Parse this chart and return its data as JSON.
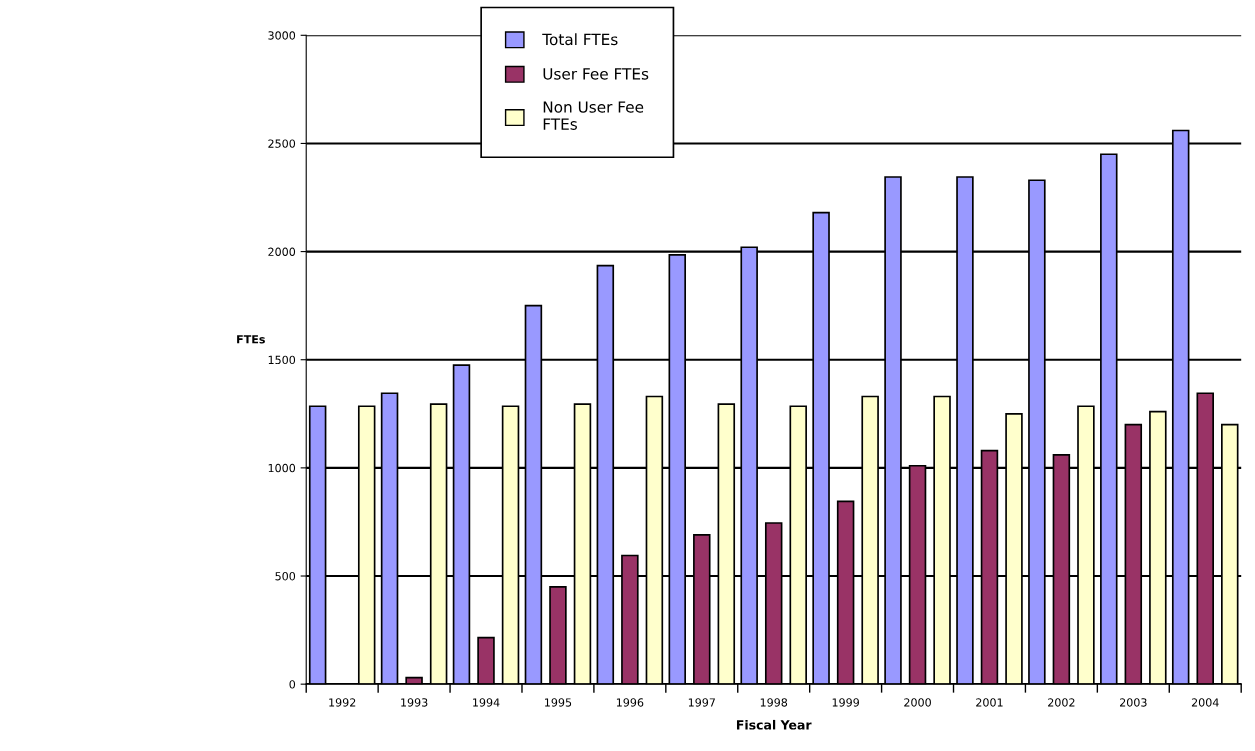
{
  "chart_data": {
    "type": "bar",
    "xlabel": "Fiscal Year",
    "ylabel": "FTEs",
    "categories": [
      "1992",
      "1993",
      "1994",
      "1995",
      "1996",
      "1997",
      "1998",
      "1999",
      "2000",
      "2001",
      "2002",
      "2003",
      "2004"
    ],
    "series": [
      {
        "name": "Total FTEs",
        "color": "#9999ff",
        "values": [
          1285,
          1345,
          1475,
          1750,
          1935,
          1985,
          2020,
          2180,
          2345,
          2345,
          2330,
          2450,
          2560
        ]
      },
      {
        "name": "User Fee FTEs",
        "color": "#993366",
        "values": [
          null,
          30,
          215,
          450,
          595,
          690,
          745,
          845,
          1010,
          1080,
          1060,
          1200,
          1345
        ]
      },
      {
        "name": "Non User Fee FTEs",
        "color": "#ffffcc",
        "values": [
          1285,
          1295,
          1285,
          1295,
          1330,
          1295,
          1285,
          1330,
          1330,
          1250,
          1285,
          1260,
          1200
        ]
      }
    ],
    "ylim": [
      0,
      3000
    ],
    "yticks": [
      0,
      500,
      1000,
      1500,
      2000,
      2500,
      3000
    ],
    "grid": "y",
    "legend": "top"
  }
}
